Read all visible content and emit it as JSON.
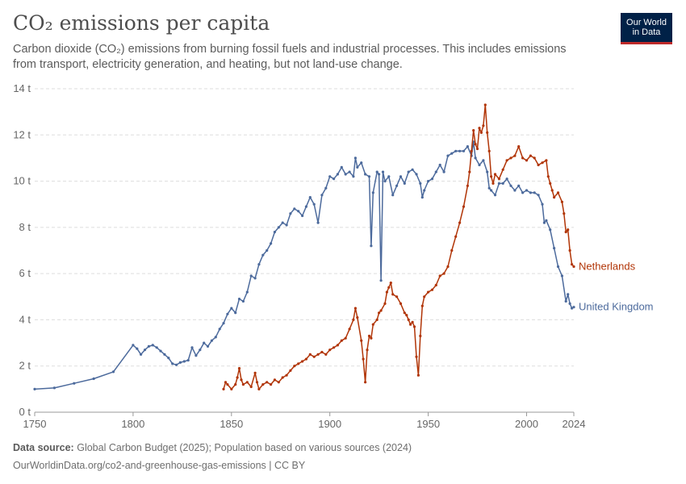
{
  "header": {
    "title": "CO₂ emissions per capita",
    "subtitle": "Carbon dioxide (CO₂) emissions from burning fossil fuels and industrial processes. This includes emissions from transport, electricity generation, and heating, but not land-use change.",
    "logo_line1": "Our World",
    "logo_line2": "in Data"
  },
  "footer": {
    "source_label": "Data source:",
    "source_text": "Global Carbon Budget (2025); Population based on various sources (2024)",
    "url_text": "OurWorldinData.org/co2-and-greenhouse-gas-emissions | CC BY"
  },
  "colors": {
    "netherlands": "#b13507",
    "uk": "#4c6a9c",
    "logo_bg": "#002147",
    "logo_accent": "#be2a2a"
  },
  "chart_data": {
    "type": "line",
    "title": "CO₂ emissions per capita",
    "xlabel": "",
    "ylabel": "",
    "xlim": [
      1750,
      2024
    ],
    "ylim": [
      0,
      14
    ],
    "x_ticks": [
      {
        "value": 1750,
        "label": "1750"
      },
      {
        "value": 1800,
        "label": "1800"
      },
      {
        "value": 1850,
        "label": "1850"
      },
      {
        "value": 1900,
        "label": "1900"
      },
      {
        "value": 1950,
        "label": "1950"
      },
      {
        "value": 2000,
        "label": "2000"
      },
      {
        "value": 2024,
        "label": "2024"
      }
    ],
    "y_ticks": [
      {
        "value": 0,
        "label": "0 t"
      },
      {
        "value": 2,
        "label": "2 t"
      },
      {
        "value": 4,
        "label": "4 t"
      },
      {
        "value": 6,
        "label": "6 t"
      },
      {
        "value": 8,
        "label": "8 t"
      },
      {
        "value": 10,
        "label": "10 t"
      },
      {
        "value": 12,
        "label": "12 t"
      },
      {
        "value": 14,
        "label": "14 t"
      }
    ],
    "grid": true,
    "legend": "line-end labels",
    "series": [
      {
        "name": "United Kingdom",
        "color": "#4c6a9c",
        "points": [
          [
            1750,
            1.0
          ],
          [
            1760,
            1.05
          ],
          [
            1770,
            1.25
          ],
          [
            1780,
            1.45
          ],
          [
            1790,
            1.75
          ],
          [
            1800,
            2.9
          ],
          [
            1802,
            2.75
          ],
          [
            1804,
            2.5
          ],
          [
            1806,
            2.7
          ],
          [
            1808,
            2.85
          ],
          [
            1810,
            2.9
          ],
          [
            1812,
            2.8
          ],
          [
            1814,
            2.65
          ],
          [
            1816,
            2.5
          ],
          [
            1818,
            2.35
          ],
          [
            1820,
            2.1
          ],
          [
            1822,
            2.05
          ],
          [
            1824,
            2.15
          ],
          [
            1826,
            2.2
          ],
          [
            1828,
            2.25
          ],
          [
            1830,
            2.8
          ],
          [
            1832,
            2.45
          ],
          [
            1834,
            2.7
          ],
          [
            1836,
            3.0
          ],
          [
            1838,
            2.85
          ],
          [
            1840,
            3.1
          ],
          [
            1842,
            3.25
          ],
          [
            1844,
            3.6
          ],
          [
            1846,
            3.85
          ],
          [
            1848,
            4.25
          ],
          [
            1850,
            4.5
          ],
          [
            1852,
            4.3
          ],
          [
            1854,
            4.9
          ],
          [
            1856,
            4.8
          ],
          [
            1858,
            5.2
          ],
          [
            1860,
            5.9
          ],
          [
            1862,
            5.8
          ],
          [
            1864,
            6.4
          ],
          [
            1866,
            6.8
          ],
          [
            1868,
            7.0
          ],
          [
            1870,
            7.3
          ],
          [
            1872,
            7.8
          ],
          [
            1874,
            8.0
          ],
          [
            1876,
            8.2
          ],
          [
            1878,
            8.1
          ],
          [
            1880,
            8.6
          ],
          [
            1882,
            8.8
          ],
          [
            1884,
            8.7
          ],
          [
            1886,
            8.5
          ],
          [
            1888,
            8.9
          ],
          [
            1890,
            9.3
          ],
          [
            1892,
            9.0
          ],
          [
            1894,
            8.2
          ],
          [
            1896,
            9.4
          ],
          [
            1898,
            9.7
          ],
          [
            1900,
            10.2
          ],
          [
            1902,
            10.1
          ],
          [
            1904,
            10.3
          ],
          [
            1906,
            10.6
          ],
          [
            1908,
            10.3
          ],
          [
            1910,
            10.4
          ],
          [
            1912,
            10.2
          ],
          [
            1913,
            11.0
          ],
          [
            1914,
            10.6
          ],
          [
            1916,
            10.8
          ],
          [
            1918,
            10.3
          ],
          [
            1920,
            10.2
          ],
          [
            1921,
            7.2
          ],
          [
            1922,
            9.5
          ],
          [
            1924,
            10.4
          ],
          [
            1925,
            10.3
          ],
          [
            1926,
            5.7
          ],
          [
            1927,
            10.4
          ],
          [
            1928,
            10.0
          ],
          [
            1930,
            10.2
          ],
          [
            1932,
            9.4
          ],
          [
            1934,
            9.8
          ],
          [
            1936,
            10.2
          ],
          [
            1938,
            9.9
          ],
          [
            1940,
            10.4
          ],
          [
            1942,
            10.5
          ],
          [
            1944,
            10.3
          ],
          [
            1946,
            9.9
          ],
          [
            1947,
            9.3
          ],
          [
            1948,
            9.6
          ],
          [
            1950,
            10.0
          ],
          [
            1952,
            10.1
          ],
          [
            1954,
            10.4
          ],
          [
            1956,
            10.7
          ],
          [
            1958,
            10.4
          ],
          [
            1960,
            11.1
          ],
          [
            1962,
            11.2
          ],
          [
            1964,
            11.3
          ],
          [
            1966,
            11.3
          ],
          [
            1968,
            11.3
          ],
          [
            1970,
            11.5
          ],
          [
            1972,
            11.1
          ],
          [
            1973,
            11.7
          ],
          [
            1974,
            11.0
          ],
          [
            1976,
            10.7
          ],
          [
            1978,
            10.9
          ],
          [
            1980,
            10.4
          ],
          [
            1981,
            9.7
          ],
          [
            1982,
            9.6
          ],
          [
            1984,
            9.4
          ],
          [
            1986,
            9.9
          ],
          [
            1988,
            9.9
          ],
          [
            1990,
            10.1
          ],
          [
            1992,
            9.8
          ],
          [
            1994,
            9.6
          ],
          [
            1996,
            9.8
          ],
          [
            1998,
            9.5
          ],
          [
            2000,
            9.6
          ],
          [
            2002,
            9.5
          ],
          [
            2004,
            9.5
          ],
          [
            2006,
            9.4
          ],
          [
            2008,
            9.0
          ],
          [
            2009,
            8.2
          ],
          [
            2010,
            8.3
          ],
          [
            2012,
            7.9
          ],
          [
            2014,
            7.1
          ],
          [
            2016,
            6.3
          ],
          [
            2018,
            5.9
          ],
          [
            2020,
            4.8
          ],
          [
            2021,
            5.1
          ],
          [
            2022,
            4.7
          ],
          [
            2023,
            4.5
          ],
          [
            2024,
            4.55
          ]
        ]
      },
      {
        "name": "Netherlands",
        "color": "#b13507",
        "points": [
          [
            1846,
            1.0
          ],
          [
            1847,
            1.3
          ],
          [
            1848,
            1.2
          ],
          [
            1850,
            1.0
          ],
          [
            1852,
            1.2
          ],
          [
            1853,
            1.5
          ],
          [
            1854,
            1.9
          ],
          [
            1855,
            1.4
          ],
          [
            1856,
            1.2
          ],
          [
            1858,
            1.3
          ],
          [
            1860,
            1.1
          ],
          [
            1862,
            1.7
          ],
          [
            1863,
            1.3
          ],
          [
            1864,
            1.0
          ],
          [
            1866,
            1.2
          ],
          [
            1868,
            1.3
          ],
          [
            1870,
            1.2
          ],
          [
            1872,
            1.4
          ],
          [
            1874,
            1.3
          ],
          [
            1876,
            1.5
          ],
          [
            1878,
            1.6
          ],
          [
            1880,
            1.8
          ],
          [
            1882,
            2.0
          ],
          [
            1884,
            2.1
          ],
          [
            1886,
            2.2
          ],
          [
            1888,
            2.3
          ],
          [
            1890,
            2.5
          ],
          [
            1892,
            2.4
          ],
          [
            1894,
            2.5
          ],
          [
            1896,
            2.6
          ],
          [
            1898,
            2.5
          ],
          [
            1900,
            2.7
          ],
          [
            1902,
            2.8
          ],
          [
            1904,
            2.9
          ],
          [
            1906,
            3.1
          ],
          [
            1908,
            3.2
          ],
          [
            1910,
            3.6
          ],
          [
            1912,
            4.0
          ],
          [
            1913,
            4.5
          ],
          [
            1914,
            4.1
          ],
          [
            1916,
            3.1
          ],
          [
            1917,
            2.3
          ],
          [
            1918,
            1.3
          ],
          [
            1919,
            2.7
          ],
          [
            1920,
            3.3
          ],
          [
            1921,
            3.2
          ],
          [
            1922,
            3.8
          ],
          [
            1924,
            4.0
          ],
          [
            1925,
            4.3
          ],
          [
            1926,
            4.4
          ],
          [
            1928,
            4.7
          ],
          [
            1929,
            5.2
          ],
          [
            1930,
            5.4
          ],
          [
            1931,
            5.6
          ],
          [
            1932,
            5.1
          ],
          [
            1934,
            5.0
          ],
          [
            1936,
            4.7
          ],
          [
            1938,
            4.3
          ],
          [
            1939,
            4.2
          ],
          [
            1940,
            4.0
          ],
          [
            1941,
            3.8
          ],
          [
            1942,
            3.9
          ],
          [
            1943,
            3.7
          ],
          [
            1944,
            2.4
          ],
          [
            1945,
            1.6
          ],
          [
            1946,
            3.3
          ],
          [
            1947,
            4.6
          ],
          [
            1948,
            5.0
          ],
          [
            1950,
            5.2
          ],
          [
            1952,
            5.3
          ],
          [
            1954,
            5.5
          ],
          [
            1956,
            5.9
          ],
          [
            1958,
            6.0
          ],
          [
            1960,
            6.3
          ],
          [
            1962,
            7.0
          ],
          [
            1964,
            7.6
          ],
          [
            1966,
            8.2
          ],
          [
            1968,
            8.9
          ],
          [
            1970,
            9.8
          ],
          [
            1971,
            10.4
          ],
          [
            1972,
            11.3
          ],
          [
            1973,
            12.2
          ],
          [
            1974,
            11.6
          ],
          [
            1975,
            11.4
          ],
          [
            1976,
            12.3
          ],
          [
            1977,
            12.1
          ],
          [
            1978,
            12.4
          ],
          [
            1979,
            13.3
          ],
          [
            1980,
            12.1
          ],
          [
            1981,
            11.3
          ],
          [
            1982,
            10.2
          ],
          [
            1983,
            9.9
          ],
          [
            1984,
            10.3
          ],
          [
            1986,
            10.1
          ],
          [
            1988,
            10.5
          ],
          [
            1990,
            10.9
          ],
          [
            1992,
            11.0
          ],
          [
            1994,
            11.1
          ],
          [
            1996,
            11.5
          ],
          [
            1998,
            11.0
          ],
          [
            2000,
            10.9
          ],
          [
            2002,
            11.1
          ],
          [
            2004,
            11.0
          ],
          [
            2006,
            10.7
          ],
          [
            2008,
            10.8
          ],
          [
            2010,
            10.9
          ],
          [
            2011,
            10.2
          ],
          [
            2012,
            9.9
          ],
          [
            2013,
            9.6
          ],
          [
            2014,
            9.3
          ],
          [
            2016,
            9.5
          ],
          [
            2018,
            9.1
          ],
          [
            2019,
            8.6
          ],
          [
            2020,
            7.8
          ],
          [
            2021,
            7.9
          ],
          [
            2022,
            7.0
          ],
          [
            2023,
            6.4
          ],
          [
            2024,
            6.3
          ]
        ]
      }
    ]
  }
}
